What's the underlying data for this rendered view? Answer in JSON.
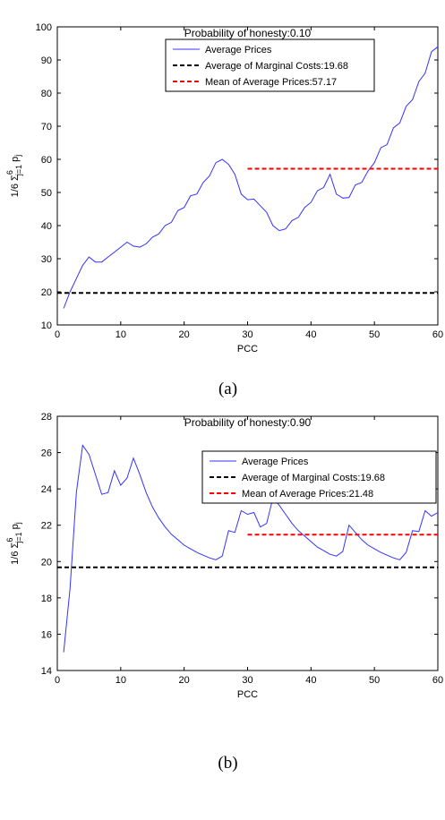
{
  "chart_data": [
    {
      "id": "a",
      "type": "line",
      "title": "Probability of honesty:0.10",
      "xlabel": "PCC",
      "ylabel": "1/6 Σ",
      "ylabel_sup": "6",
      "ylabel_sub": "j=1",
      "ylabel_tail": " p",
      "ylabel_tail_sub": "j",
      "xlim": [
        0,
        60
      ],
      "ylim": [
        10,
        100
      ],
      "xticks": [
        0,
        10,
        20,
        30,
        40,
        50,
        60
      ],
      "yticks": [
        10,
        20,
        30,
        40,
        50,
        60,
        70,
        80,
        90,
        100
      ],
      "caption": "(a)",
      "legend_position": "top-center",
      "series": [
        {
          "name": "Average Prices",
          "color": "#3333ff",
          "style": "solid",
          "x": [
            1,
            2,
            3,
            4,
            5,
            6,
            7,
            8,
            9,
            10,
            11,
            12,
            13,
            14,
            15,
            16,
            17,
            18,
            19,
            20,
            21,
            22,
            23,
            24,
            25,
            26,
            27,
            28,
            29,
            30,
            31,
            32,
            33,
            34,
            35,
            36,
            37,
            38,
            39,
            40,
            41,
            42,
            43,
            44,
            45,
            46,
            47,
            48,
            49,
            50,
            51,
            52,
            53,
            54,
            55,
            56,
            57,
            58,
            59,
            60
          ],
          "y": [
            15,
            20,
            24,
            28,
            30.5,
            29,
            29,
            30.5,
            32,
            33.5,
            35,
            33.8,
            33.5,
            34.5,
            36.5,
            37.5,
            40,
            41,
            44.5,
            45.5,
            49,
            49.5,
            53,
            55,
            59,
            60,
            58.5,
            55.5,
            49.5,
            47.8,
            48,
            46,
            44,
            40,
            38.5,
            39,
            41.5,
            42.5,
            45.5,
            47,
            50.5,
            51.5,
            55.5,
            49.5,
            48.3,
            48.5,
            52.3,
            53,
            56.5,
            59,
            63.5,
            64.5,
            69.5,
            71,
            76,
            78,
            83.5,
            86,
            92.5,
            94
          ]
        },
        {
          "name": "Average of Marginal Costs:19.68",
          "color": "#000000",
          "style": "dashed",
          "x": [
            0,
            60
          ],
          "y": [
            19.68,
            19.68
          ]
        },
        {
          "name": "Mean of Average Prices:57.17",
          "color": "#ff0000",
          "style": "dashed",
          "x": [
            30,
            60
          ],
          "y": [
            57.17,
            57.17
          ]
        }
      ]
    },
    {
      "id": "b",
      "type": "line",
      "title": "Probability of honesty:0.90",
      "xlabel": "PCC",
      "ylabel": "1/6 Σ",
      "ylabel_sup": "6",
      "ylabel_sub": "j=1",
      "ylabel_tail": " p",
      "ylabel_tail_sub": "j",
      "xlim": [
        0,
        60
      ],
      "ylim": [
        14,
        28
      ],
      "xticks": [
        0,
        10,
        20,
        30,
        40,
        50,
        60
      ],
      "yticks": [
        14,
        16,
        18,
        20,
        22,
        24,
        26,
        28
      ],
      "caption": "(b)",
      "legend_position": "top-right",
      "series": [
        {
          "name": "Average Prices",
          "color": "#3333ff",
          "style": "solid",
          "x": [
            1,
            2,
            3,
            4,
            5,
            6,
            7,
            8,
            9,
            10,
            11,
            12,
            13,
            14,
            15,
            16,
            17,
            18,
            19,
            20,
            21,
            22,
            23,
            24,
            25,
            26,
            27,
            28,
            29,
            30,
            31,
            32,
            33,
            34,
            35,
            36,
            37,
            38,
            39,
            40,
            41,
            42,
            43,
            44,
            45,
            46,
            47,
            48,
            49,
            50,
            51,
            52,
            53,
            54,
            55,
            56,
            57,
            58,
            59,
            60
          ],
          "y": [
            15,
            18.5,
            23.8,
            26.4,
            25.9,
            24.8,
            23.7,
            23.8,
            25,
            24.2,
            24.6,
            25.7,
            24.8,
            23.8,
            23,
            22.4,
            21.9,
            21.5,
            21.2,
            20.9,
            20.7,
            20.5,
            20.35,
            20.2,
            20.1,
            20.3,
            21.7,
            21.6,
            22.8,
            22.6,
            22.7,
            21.9,
            22.1,
            23.5,
            23.1,
            22.6,
            22.1,
            21.7,
            21.4,
            21.1,
            20.8,
            20.6,
            20.4,
            20.3,
            20.55,
            22,
            21.6,
            21.2,
            20.9,
            20.7,
            20.5,
            20.35,
            20.2,
            20.1,
            20.5,
            21.7,
            21.65,
            22.8,
            22.5,
            22.7
          ]
        },
        {
          "name": "Average of Marginal Costs:19.68",
          "color": "#000000",
          "style": "dashed",
          "x": [
            0,
            60
          ],
          "y": [
            19.68,
            19.68
          ]
        },
        {
          "name": "Mean of Average Prices:21.48",
          "color": "#ff0000",
          "style": "dashed",
          "x": [
            30,
            60
          ],
          "y": [
            21.48,
            21.48
          ]
        }
      ]
    }
  ]
}
